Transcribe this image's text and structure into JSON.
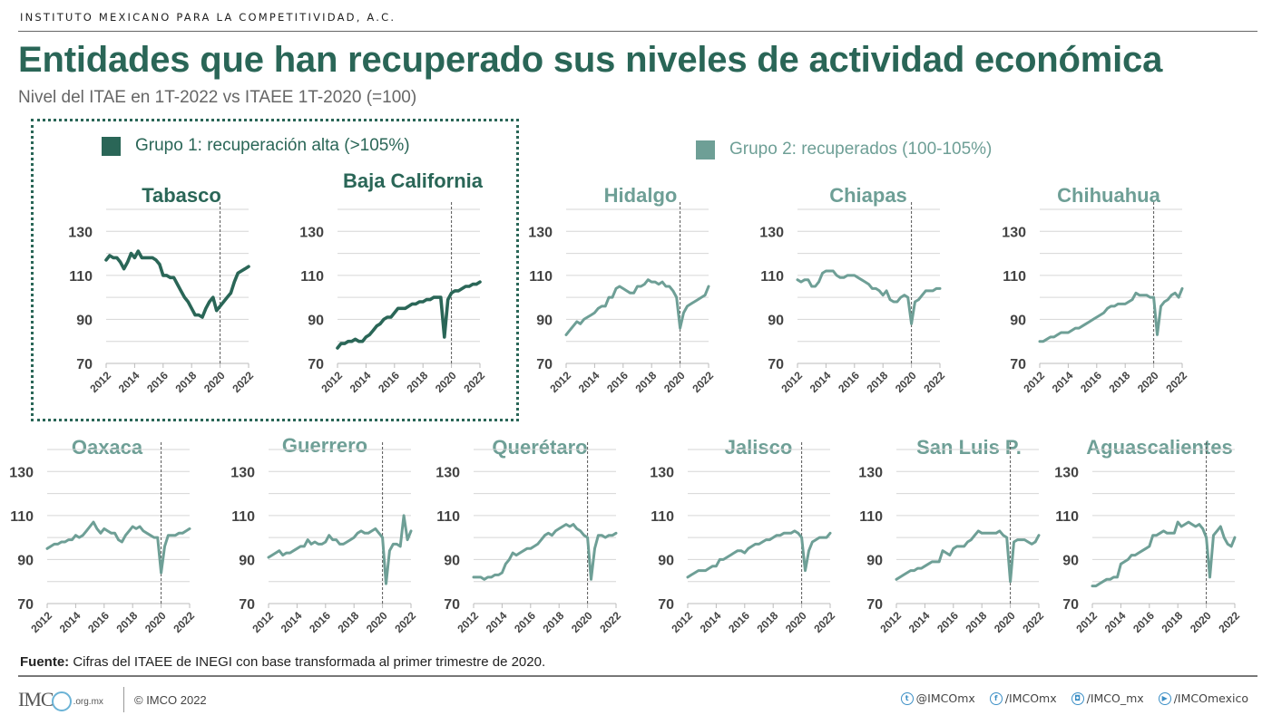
{
  "header": {
    "organization": "INSTITUTO MEXICANO PARA LA COMPETITIVIDAD, A.C.",
    "title": "Entidades que han recuperado sus niveles de actividad económica",
    "subtitle": "Nivel del ITAE en 1T-2022 vs ITAEE 1T-2020 (=100)"
  },
  "legend": {
    "group1": {
      "label": "Grupo 1: recuperación alta (>105%)",
      "color": "#2a6657"
    },
    "group2": {
      "label": "Grupo 2: recuperados (100-105%)",
      "color": "#6e9f96"
    }
  },
  "footer": {
    "source_label": "Fuente:",
    "source_text": " Cifras del ITAEE de INEGI con base transformada al primer trimestre de 2020.",
    "logo_text": "IMC",
    "logo_domain": ".org.mx",
    "copyright": "© IMCO 2022",
    "socials": [
      {
        "icon": "twitter-icon",
        "glyph": "t",
        "label": "@IMCOmx"
      },
      {
        "icon": "facebook-icon",
        "glyph": "f",
        "label": "/IMCOmx"
      },
      {
        "icon": "instagram-icon",
        "glyph": "◘",
        "label": "/IMCO_mx"
      },
      {
        "icon": "youtube-icon",
        "glyph": "▶",
        "label": "/IMCOmexico"
      }
    ]
  },
  "chart_data": {
    "type": "line",
    "title": "Entidades que han recuperado sus niveles de actividad económica",
    "subtitle": "Nivel del ITAE en 1T-2022 vs ITAEE 1T-2020 (=100)",
    "xlabel": "",
    "ylabel": "",
    "x_range": [
      2012,
      2022
    ],
    "x_ticks": [
      "2012",
      "2014",
      "2016",
      "2018",
      "2020",
      "2022"
    ],
    "ylim": [
      70,
      140
    ],
    "y_ticks": [
      70,
      90,
      110,
      130
    ],
    "gridlines": [
      70,
      80,
      90,
      100,
      110,
      120,
      130,
      140
    ],
    "grid": true,
    "reference_line": {
      "x": 2020,
      "style": "dashed"
    },
    "frequency": "quarterly",
    "x_start": "2012Q1",
    "x_end": "2022Q1",
    "panels": [
      {
        "name": "Tabasco",
        "group": 1,
        "values": [
          117,
          119,
          118,
          118,
          116,
          113,
          116,
          120,
          118,
          121,
          118,
          118,
          118,
          118,
          117,
          115,
          110,
          110,
          109,
          109,
          106,
          103,
          100,
          98,
          95,
          92,
          92,
          91,
          95,
          98,
          100,
          94,
          96,
          98,
          100,
          102,
          107,
          111,
          112,
          113,
          114
        ]
      },
      {
        "name": "Baja California",
        "group": 1,
        "values": [
          77,
          79,
          79,
          80,
          80,
          81,
          80,
          80,
          82,
          83,
          85,
          87,
          88,
          90,
          91,
          91,
          93,
          95,
          95,
          95,
          96,
          97,
          97,
          98,
          98,
          99,
          99,
          100,
          100,
          100,
          82,
          99,
          102,
          103,
          103,
          104,
          105,
          105,
          106,
          106,
          107
        ]
      },
      {
        "name": "Hidalgo",
        "group": 2,
        "values": [
          83,
          85,
          87,
          89,
          88,
          90,
          91,
          92,
          93,
          95,
          96,
          96,
          100,
          100,
          104,
          105,
          104,
          103,
          102,
          102,
          105,
          105,
          106,
          108,
          107,
          107,
          106,
          107,
          105,
          105,
          103,
          100,
          86,
          93,
          96,
          97,
          98,
          99,
          100,
          101,
          105
        ]
      },
      {
        "name": "Chiapas",
        "group": 2,
        "values": [
          108,
          107,
          108,
          108,
          105,
          105,
          107,
          111,
          112,
          112,
          112,
          110,
          109,
          109,
          110,
          110,
          110,
          109,
          108,
          107,
          106,
          104,
          104,
          103,
          101,
          103,
          99,
          98,
          98,
          100,
          101,
          100,
          88,
          98,
          99,
          101,
          103,
          103,
          103,
          104,
          104
        ]
      },
      {
        "name": "Chihuahua",
        "group": 2,
        "values": [
          80,
          80,
          81,
          82,
          82,
          83,
          84,
          84,
          84,
          85,
          86,
          86,
          87,
          88,
          89,
          90,
          91,
          92,
          93,
          95,
          96,
          96,
          97,
          97,
          97,
          98,
          99,
          102,
          101,
          101,
          101,
          100,
          100,
          83,
          96,
          98,
          99,
          101,
          102,
          100,
          104
        ]
      },
      {
        "name": "Oaxaca",
        "group": 2,
        "values": [
          95,
          96,
          97,
          97,
          98,
          98,
          99,
          99,
          101,
          100,
          101,
          103,
          105,
          107,
          104,
          102,
          104,
          103,
          102,
          102,
          99,
          98,
          101,
          103,
          105,
          104,
          105,
          103,
          102,
          101,
          100,
          100,
          84,
          96,
          101,
          101,
          101,
          102,
          102,
          103,
          104
        ]
      },
      {
        "name": "Guerrero",
        "group": 2,
        "values": [
          91,
          92,
          93,
          94,
          92,
          93,
          93,
          94,
          95,
          96,
          96,
          99,
          97,
          98,
          97,
          97,
          98,
          101,
          99,
          99,
          97,
          97,
          98,
          99,
          100,
          102,
          103,
          102,
          102,
          103,
          104,
          102,
          100,
          79,
          94,
          97,
          97,
          96,
          110,
          99,
          103
        ]
      },
      {
        "name": "Querétaro",
        "group": 2,
        "values": [
          82,
          82,
          82,
          81,
          82,
          82,
          83,
          83,
          84,
          88,
          90,
          93,
          92,
          93,
          94,
          95,
          95,
          96,
          97,
          99,
          101,
          102,
          101,
          103,
          104,
          105,
          106,
          105,
          106,
          104,
          103,
          101,
          100,
          81,
          95,
          101,
          101,
          100,
          101,
          101,
          102
        ]
      },
      {
        "name": "Jalisco",
        "group": 2,
        "values": [
          82,
          83,
          84,
          85,
          85,
          85,
          86,
          87,
          87,
          90,
          90,
          91,
          92,
          93,
          94,
          94,
          93,
          95,
          96,
          97,
          97,
          98,
          99,
          99,
          100,
          101,
          101,
          102,
          102,
          102,
          103,
          102,
          100,
          85,
          94,
          98,
          99,
          100,
          100,
          100,
          102
        ]
      },
      {
        "name": "San Luis P.",
        "group": 2,
        "values": [
          81,
          82,
          83,
          84,
          85,
          85,
          86,
          86,
          87,
          88,
          89,
          89,
          89,
          94,
          93,
          92,
          95,
          96,
          96,
          96,
          98,
          99,
          101,
          103,
          102,
          102,
          102,
          102,
          102,
          103,
          101,
          100,
          80,
          98,
          99,
          99,
          99,
          98,
          97,
          98,
          101
        ]
      },
      {
        "name": "Aguascalientes",
        "group": 2,
        "values": [
          78,
          78,
          79,
          80,
          81,
          81,
          82,
          82,
          88,
          89,
          90,
          92,
          92,
          93,
          94,
          95,
          96,
          101,
          101,
          102,
          103,
          102,
          102,
          102,
          107,
          105,
          106,
          107,
          106,
          105,
          106,
          104,
          100,
          82,
          101,
          103,
          105,
          100,
          97,
          96,
          100
        ]
      }
    ]
  }
}
